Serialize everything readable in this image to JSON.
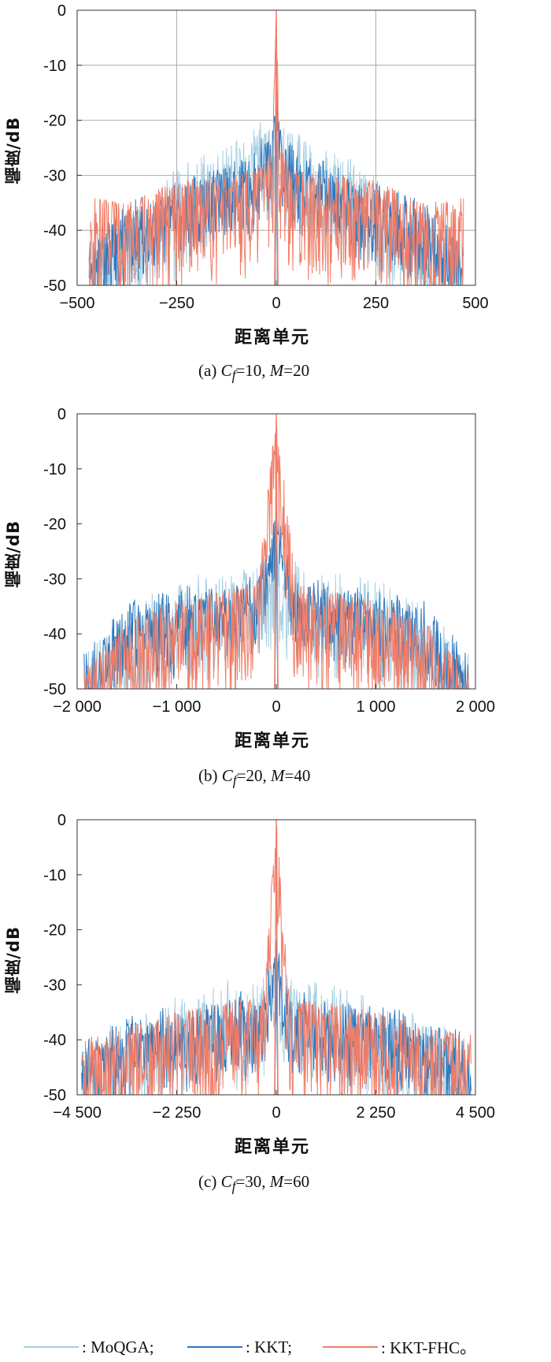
{
  "colors": {
    "moqga": "#a6cfe2",
    "kkt": "#2f78bd",
    "kkt_fhc": "#f17c67",
    "grid": "#9a9a9a"
  },
  "legend": [
    {
      "text": ": MoQGA;",
      "color": "#a6cfe2"
    },
    {
      "text": ": KKT;",
      "color": "#2f78bd"
    },
    {
      "text": ": KKT-FHC。",
      "color": "#f17c67"
    }
  ],
  "panels": [
    {
      "ylabel": "幅度/dB",
      "xlabel": "距离单元",
      "caption": {
        "prefix": "(a)  ",
        "var": "C",
        "sub": "f",
        "mid": "=10, ",
        "var2": "M",
        "suffix": "=20"
      }
    },
    {
      "ylabel": "幅度/dB",
      "xlabel": "距离单元",
      "caption": {
        "prefix": "(b)  ",
        "var": "C",
        "sub": "f",
        "mid": "=20, ",
        "var2": "M",
        "suffix": "=40"
      }
    },
    {
      "ylabel": "幅度/dB",
      "xlabel": "距离单元",
      "caption": {
        "prefix": "(c)  ",
        "var": "C",
        "sub": "f",
        "mid": "=30, ",
        "var2": "M",
        "suffix": "=60"
      }
    }
  ],
  "chart_data": [
    {
      "type": "line",
      "xlabel": "距离单元",
      "ylabel": "幅度/dB",
      "xlim": [
        -500,
        500
      ],
      "ylim": [
        -50,
        0
      ],
      "xticks": [
        -500,
        -250,
        0,
        250,
        500
      ],
      "xtick_labels": [
        "−500",
        "−250",
        "0",
        "250",
        "500"
      ],
      "yticks": [
        0,
        -10,
        -20,
        -30,
        -40,
        -50
      ],
      "ytick_labels": [
        "0",
        "-10",
        "-20",
        "-30",
        "-40",
        "-50"
      ],
      "grid": true,
      "series": [
        {
          "name": "MoQGA",
          "x": [
            -470,
            -375,
            -250,
            -125,
            -50,
            -10,
            0,
            10,
            50,
            125,
            250,
            375,
            470
          ],
          "y": [
            -43,
            -37,
            -30,
            -25,
            -22,
            -20,
            -18,
            -20,
            -22,
            -25,
            -30,
            -37,
            -43
          ],
          "peak": -18
        },
        {
          "name": "KKT",
          "x": [
            -470,
            -375,
            -250,
            -125,
            -50,
            -10,
            0,
            10,
            50,
            125,
            250,
            375,
            470
          ],
          "y": [
            -42,
            -36,
            -32,
            -28,
            -26,
            -22,
            -14,
            -22,
            -26,
            -28,
            -32,
            -36,
            -42
          ],
          "peak": -14
        },
        {
          "name": "KKT-FHC",
          "x": [
            -470,
            -375,
            -250,
            -125,
            -50,
            -10,
            0,
            10,
            50,
            125,
            250,
            375,
            470
          ],
          "y": [
            -34,
            -35,
            -31,
            -30,
            -29,
            -25,
            0,
            -25,
            -29,
            -30,
            -31,
            -35,
            -34
          ],
          "peak": 0
        }
      ],
      "support": 470
    },
    {
      "type": "line",
      "xlabel": "距离单元",
      "ylabel": "幅度/dB",
      "xlim": [
        -2000,
        2000
      ],
      "ylim": [
        -50,
        0
      ],
      "xticks": [
        -2000,
        -1000,
        0,
        1000,
        2000
      ],
      "xtick_labels": [
        "−2 000",
        "−1 000",
        "0",
        "1 000",
        "2 000"
      ],
      "yticks": [
        0,
        -10,
        -20,
        -30,
        -40,
        -50
      ],
      "ytick_labels": [
        "0",
        "-10",
        "-20",
        "-30",
        "-40",
        "-50"
      ],
      "grid": false,
      "series": [
        {
          "name": "MoQGA",
          "x": [
            -1900,
            -1500,
            -1000,
            -500,
            -200,
            0,
            200,
            500,
            1000,
            1500,
            1900
          ],
          "y": [
            -44,
            -36,
            -31,
            -29,
            -27,
            -24,
            -27,
            -29,
            -31,
            -36,
            -44
          ],
          "peak": -24
        },
        {
          "name": "KKT",
          "x": [
            -1900,
            -1500,
            -1000,
            -500,
            -200,
            0,
            200,
            500,
            1000,
            1500,
            1900
          ],
          "y": [
            -44,
            -35,
            -33,
            -31,
            -30,
            -18,
            -30,
            -31,
            -33,
            -35,
            -44
          ],
          "peak": -18
        },
        {
          "name": "KKT-FHC",
          "x": [
            -1900,
            -1500,
            -1000,
            -500,
            -200,
            0,
            200,
            500,
            1000,
            1500,
            1900
          ],
          "y": [
            -46,
            -38,
            -34,
            -32,
            -31,
            0,
            -31,
            -32,
            -34,
            -38,
            -46
          ],
          "peak": 0
        }
      ],
      "support": 1930
    },
    {
      "type": "line",
      "xlabel": "距离单元",
      "ylabel": "幅度/dB",
      "xlim": [
        -4500,
        4500
      ],
      "ylim": [
        -50,
        0
      ],
      "xticks": [
        -4500,
        -2250,
        0,
        2250,
        4500
      ],
      "xtick_labels": [
        "−4 500",
        "−2 250",
        "0",
        "2 250",
        "4 500"
      ],
      "yticks": [
        0,
        -10,
        -20,
        -30,
        -40,
        -50
      ],
      "ytick_labels": [
        "0",
        "-10",
        "-20",
        "-30",
        "-40",
        "-50"
      ],
      "grid": false,
      "series": [
        {
          "name": "MoQGA",
          "x": [
            -4400,
            -3500,
            -2250,
            -1000,
            -300,
            0,
            300,
            1000,
            2250,
            3500,
            4400
          ],
          "y": [
            -42,
            -37,
            -33,
            -30,
            -29,
            -22,
            -29,
            -30,
            -33,
            -37,
            -42
          ],
          "peak": -22
        },
        {
          "name": "KKT",
          "x": [
            -4400,
            -3500,
            -2250,
            -1000,
            -300,
            0,
            300,
            1000,
            2250,
            3500,
            4400
          ],
          "y": [
            -41,
            -37,
            -35,
            -33,
            -32,
            -22,
            -32,
            -33,
            -35,
            -37,
            -41
          ],
          "peak": -22
        },
        {
          "name": "KKT-FHC",
          "x": [
            -4400,
            -3500,
            -2250,
            -1000,
            -300,
            0,
            300,
            1000,
            2250,
            3500,
            4400
          ],
          "y": [
            -39,
            -38,
            -35,
            -33,
            -32,
            0,
            -32,
            -33,
            -35,
            -38,
            -39
          ],
          "peak": 0
        }
      ],
      "support": 4400
    }
  ]
}
